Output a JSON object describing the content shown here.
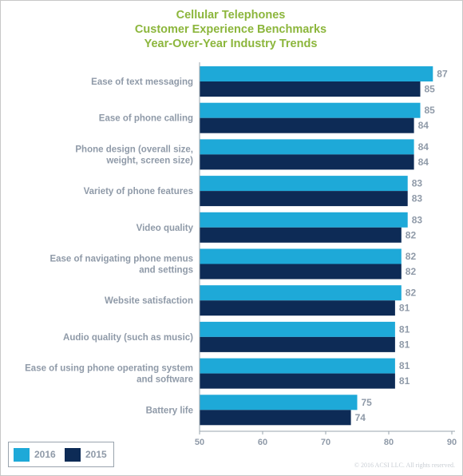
{
  "title_lines": [
    "Cellular Telephones",
    "Customer Experience Benchmarks",
    "Year-Over-Year Industry Trends"
  ],
  "colors": {
    "series_2016": "#1ea9d8",
    "series_2015": "#0d2b56",
    "title": "#8cb63c",
    "label": "#8f9aa8"
  },
  "legend": [
    {
      "label": "2016",
      "color": "#1ea9d8"
    },
    {
      "label": "2015",
      "color": "#0d2b56"
    }
  ],
  "copyright": "© 2016 ACSI LLC. All rights reserved.",
  "chart_data": {
    "type": "bar",
    "orientation": "horizontal",
    "categories": [
      [
        "Ease of text messaging"
      ],
      [
        "Ease of phone calling"
      ],
      [
        "Phone design (overall size,",
        "weight, screen size)"
      ],
      [
        "Variety of phone features"
      ],
      [
        "Video quality"
      ],
      [
        "Ease of navigating phone menus",
        "and settings"
      ],
      [
        "Website satisfaction"
      ],
      [
        "Audio quality (such as music)"
      ],
      [
        "Ease of using phone operating system",
        "and software"
      ],
      [
        "Battery life"
      ]
    ],
    "series": [
      {
        "name": "2016",
        "values": [
          87,
          85,
          84,
          83,
          83,
          82,
          82,
          81,
          81,
          75
        ]
      },
      {
        "name": "2015",
        "values": [
          85,
          84,
          84,
          83,
          82,
          82,
          81,
          81,
          81,
          74
        ]
      }
    ],
    "xlim": [
      50,
      90
    ],
    "xticks": [
      50,
      60,
      70,
      80,
      90
    ],
    "grid": false,
    "legend_position": "bottom-left"
  }
}
